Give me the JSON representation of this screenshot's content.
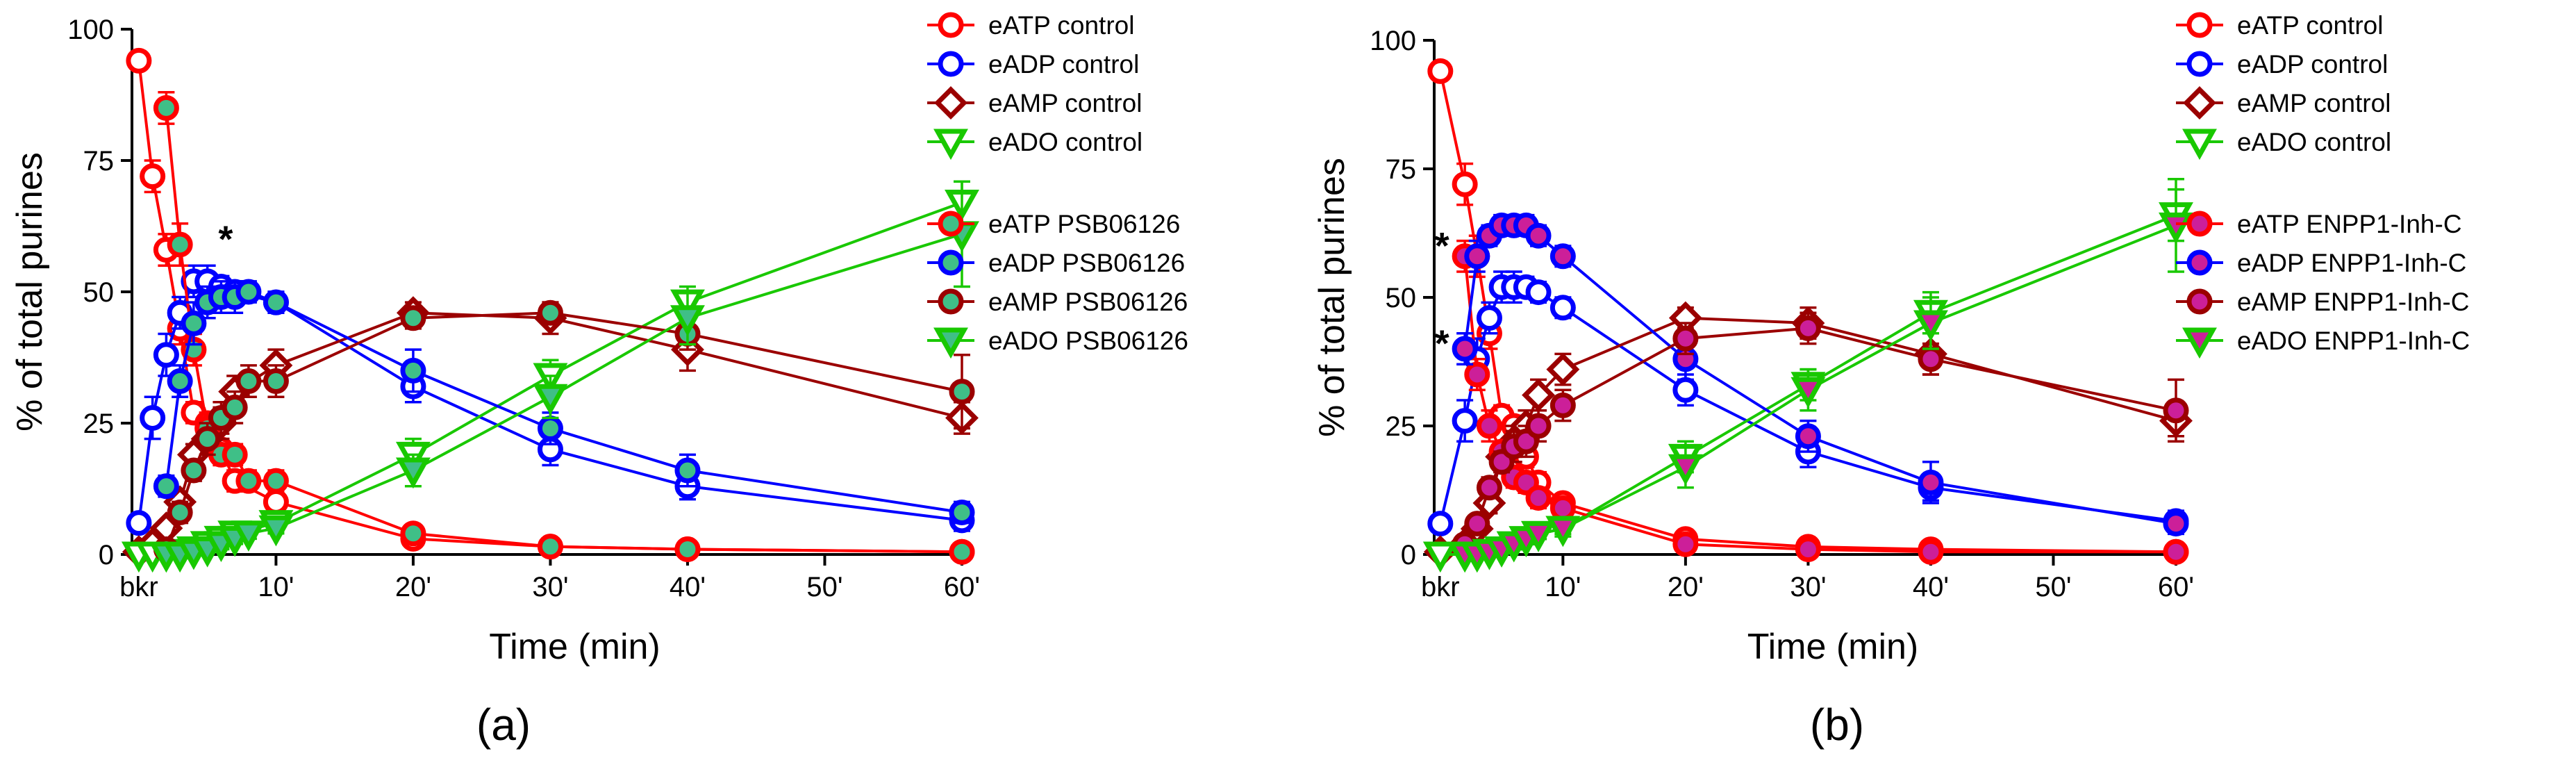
{
  "colors": {
    "atp": "#ff0000",
    "adp": "#0000ff",
    "amp": "#9b0000",
    "ado": "#19c800",
    "fill_psb": "#3fbf87",
    "fill_inh": "#cc1f99"
  },
  "chart_data": [
    {
      "type": "line",
      "panel_label": "(a)",
      "title": "",
      "xlabel": "Time (min)",
      "ylabel": "% of total purines",
      "xlim": [
        -0.5,
        60
      ],
      "ylim": [
        0,
        100
      ],
      "x_ticks": [
        {
          "x": 0,
          "label": "bkr"
        },
        {
          "x": 10,
          "label": "10'"
        },
        {
          "x": 20,
          "label": "20'"
        },
        {
          "x": 30,
          "label": "30'"
        },
        {
          "x": 40,
          "label": "40'"
        },
        {
          "x": 50,
          "label": "50'"
        },
        {
          "x": 60,
          "label": "60'"
        }
      ],
      "y_ticks": [
        0,
        25,
        50,
        75,
        100
      ],
      "legend_position": "right",
      "annotations": [
        {
          "text": "*",
          "x": 6.3,
          "y": 60
        }
      ],
      "series": [
        {
          "name": "eATP control",
          "marker": "circle",
          "color": "atp",
          "fill": "",
          "x": [
            0,
            1,
            2,
            3,
            4,
            5,
            6,
            7,
            10,
            20,
            30,
            40,
            60
          ],
          "y": [
            94,
            72,
            58,
            43,
            27,
            25,
            20,
            14,
            10,
            3,
            1.5,
            1,
            0.5
          ],
          "err": [
            1.5,
            3,
            3,
            3,
            2,
            2,
            2,
            2,
            1.5,
            1,
            0.5,
            0.5,
            0.3
          ]
        },
        {
          "name": "eADP control",
          "marker": "circle",
          "color": "adp",
          "fill": "",
          "x": [
            0,
            1,
            2,
            3,
            4,
            5,
            6,
            7,
            10,
            20,
            30,
            40,
            60
          ],
          "y": [
            6,
            26,
            38,
            46,
            52,
            52,
            51,
            50,
            48,
            32,
            20,
            13,
            6.5
          ],
          "err": [
            1,
            4,
            4,
            3,
            3,
            3,
            2,
            2,
            2,
            3,
            3,
            2.5,
            2
          ]
        },
        {
          "name": "eAMP control",
          "marker": "diamond",
          "color": "amp",
          "fill": "",
          "x": [
            0,
            1,
            2,
            3,
            4,
            5,
            6,
            7,
            10,
            20,
            30,
            40,
            60
          ],
          "y": [
            0.5,
            2,
            5,
            10,
            19,
            22,
            25,
            31,
            36,
            46,
            45,
            39,
            26
          ],
          "err": [
            0.5,
            1,
            1,
            2,
            2,
            3,
            3,
            3,
            3,
            2,
            3,
            4,
            3
          ]
        },
        {
          "name": "eADO control",
          "marker": "triangle-down",
          "color": "ado",
          "fill": "",
          "x": [
            0,
            1,
            2,
            3,
            4,
            5,
            6,
            7,
            10,
            20,
            30,
            40,
            60
          ],
          "y": [
            0,
            0,
            0,
            0.5,
            1,
            2,
            3,
            4,
            6,
            19,
            34,
            48,
            67
          ],
          "err": [
            0.3,
            0.3,
            0.3,
            0.5,
            0.5,
            1,
            1,
            1,
            1.5,
            3,
            3,
            3,
            4
          ]
        },
        {
          "name": "eATP PSB06126",
          "marker": "circle",
          "color": "atp",
          "fill": "fill_psb",
          "x": [
            2,
            3,
            4,
            5,
            6,
            7,
            8,
            10,
            20,
            30,
            40,
            60
          ],
          "y": [
            85,
            59,
            39,
            24,
            19,
            19,
            14,
            14,
            4,
            1.5,
            1,
            0.5
          ],
          "err": [
            3,
            4,
            3,
            3,
            2,
            2,
            2,
            2,
            1,
            0.5,
            0.5,
            0.3
          ]
        },
        {
          "name": "eADP PSB06126",
          "marker": "circle",
          "color": "adp",
          "fill": "fill_psb",
          "x": [
            2,
            3,
            4,
            5,
            6,
            7,
            8,
            10,
            20,
            30,
            40,
            60
          ],
          "y": [
            13,
            33,
            44,
            48,
            49,
            49,
            50,
            48,
            35,
            24,
            16,
            8
          ],
          "err": [
            2,
            3,
            4,
            3,
            3,
            3,
            2,
            2,
            4,
            3,
            3,
            2
          ]
        },
        {
          "name": "eAMP PSB06126",
          "marker": "circle",
          "color": "amp",
          "fill": "fill_psb",
          "x": [
            2,
            3,
            4,
            5,
            6,
            7,
            8,
            10,
            20,
            30,
            40,
            60
          ],
          "y": [
            1,
            8,
            16,
            22,
            26,
            28,
            33,
            33,
            45,
            46,
            42,
            31
          ],
          "err": [
            0.5,
            2,
            2,
            3,
            3,
            3,
            3,
            3,
            2,
            2,
            3,
            7
          ]
        },
        {
          "name": "eADO PSB06126",
          "marker": "triangle-down",
          "color": "ado",
          "fill": "fill_psb",
          "x": [
            2,
            3,
            4,
            5,
            6,
            7,
            8,
            10,
            20,
            30,
            40,
            60
          ],
          "y": [
            0,
            0,
            0.5,
            1,
            2,
            3,
            4,
            5,
            16,
            30,
            45,
            61
          ],
          "err": [
            0.3,
            0.3,
            0.5,
            0.5,
            1,
            1,
            1,
            1,
            3,
            4,
            5,
            10
          ]
        }
      ]
    },
    {
      "type": "line",
      "panel_label": "(b)",
      "title": "",
      "xlabel": "Time (min)",
      "ylabel": "% of total purines",
      "xlim": [
        -0.5,
        60
      ],
      "ylim": [
        0,
        100
      ],
      "x_ticks": [
        {
          "x": 0,
          "label": "bkr"
        },
        {
          "x": 10,
          "label": "10'"
        },
        {
          "x": 20,
          "label": "20'"
        },
        {
          "x": 30,
          "label": "30'"
        },
        {
          "x": 40,
          "label": "40'"
        },
        {
          "x": 50,
          "label": "50'"
        },
        {
          "x": 60,
          "label": "60'"
        }
      ],
      "y_ticks": [
        0,
        25,
        50,
        75,
        100
      ],
      "legend_position": "right",
      "annotations": [
        {
          "text": "*",
          "x": 0.1,
          "y": 60
        },
        {
          "text": "*",
          "x": 0.1,
          "y": 41
        }
      ],
      "series": [
        {
          "name": "eATP control",
          "marker": "circle",
          "color": "atp",
          "fill": "",
          "x": [
            0,
            2,
            3,
            4,
            5,
            6,
            7,
            8,
            10,
            20,
            30,
            40,
            60
          ],
          "y": [
            94,
            72,
            58,
            43,
            27,
            25,
            19,
            14,
            10,
            3,
            1.5,
            1,
            0.5
          ],
          "err": [
            1.5,
            4,
            4,
            3,
            2,
            2,
            2,
            2,
            1.5,
            1,
            0.5,
            0.5,
            0.3
          ]
        },
        {
          "name": "eADP control",
          "marker": "circle",
          "color": "adp",
          "fill": "",
          "x": [
            0,
            2,
            3,
            4,
            5,
            6,
            7,
            8,
            10,
            20,
            30,
            40,
            60
          ],
          "y": [
            6,
            26,
            38,
            46,
            52,
            52,
            52,
            51,
            48,
            32,
            20,
            13,
            6.5
          ],
          "err": [
            1,
            4,
            4,
            3,
            3,
            3,
            2,
            2,
            2,
            3,
            3,
            2.5,
            2
          ]
        },
        {
          "name": "eAMP control",
          "marker": "diamond",
          "color": "amp",
          "fill": "",
          "x": [
            0,
            2,
            3,
            4,
            5,
            6,
            7,
            8,
            10,
            20,
            30,
            40,
            60
          ],
          "y": [
            0.5,
            2,
            5,
            10,
            19,
            22,
            25,
            31,
            36,
            46,
            45,
            39,
            26
          ],
          "err": [
            0.5,
            1,
            1,
            2,
            2,
            3,
            3,
            3,
            3,
            2,
            3,
            4,
            3
          ]
        },
        {
          "name": "eADO control",
          "marker": "triangle-down",
          "color": "ado",
          "fill": "",
          "x": [
            0,
            2,
            3,
            4,
            5,
            6,
            7,
            8,
            10,
            20,
            30,
            40,
            60
          ],
          "y": [
            0,
            0,
            0,
            0.5,
            1,
            2,
            3,
            4,
            5,
            19,
            33,
            47,
            66
          ],
          "err": [
            0.3,
            0.3,
            0.3,
            0.5,
            0.5,
            1,
            1,
            1,
            1.5,
            3,
            3,
            4,
            5
          ]
        },
        {
          "name": "eATP ENPP1-Inh-C",
          "marker": "circle",
          "color": "atp",
          "fill": "fill_inh",
          "x": [
            2,
            3,
            4,
            5,
            6,
            7,
            8,
            10,
            20,
            30,
            40,
            60
          ],
          "y": [
            58,
            35,
            25,
            20,
            15,
            14,
            11,
            9,
            2,
            1,
            0.5,
            0.5
          ],
          "err": [
            3,
            3,
            3,
            2,
            2,
            2,
            2,
            1.5,
            1,
            0.5,
            0.5,
            0.3
          ]
        },
        {
          "name": "eADP ENPP1-Inh-C",
          "marker": "circle",
          "color": "adp",
          "fill": "fill_inh",
          "x": [
            2,
            3,
            4,
            5,
            6,
            7,
            8,
            10,
            20,
            30,
            40,
            60
          ],
          "y": [
            40,
            58,
            62,
            64,
            64,
            64,
            62,
            58,
            38,
            23,
            14,
            6
          ],
          "err": [
            3,
            3,
            2,
            2,
            2,
            2,
            2,
            2,
            4,
            3,
            4,
            2
          ]
        },
        {
          "name": "eAMP ENPP1-Inh-C",
          "marker": "circle",
          "color": "amp",
          "fill": "fill_inh",
          "x": [
            2,
            3,
            4,
            5,
            6,
            7,
            8,
            10,
            20,
            30,
            40,
            60
          ],
          "y": [
            2,
            6,
            13,
            18,
            21,
            22,
            25,
            29,
            42,
            44,
            38,
            28
          ],
          "err": [
            0.5,
            1,
            2,
            2,
            3,
            3,
            3,
            3,
            3,
            3,
            3,
            6
          ]
        },
        {
          "name": "eADO ENPP1-Inh-C",
          "marker": "triangle-down",
          "color": "ado",
          "fill": "fill_inh",
          "x": [
            2,
            3,
            4,
            5,
            6,
            7,
            8,
            10,
            20,
            30,
            40,
            60
          ],
          "y": [
            0,
            0,
            0.5,
            1,
            2,
            3,
            4,
            5,
            17,
            32,
            45,
            64
          ],
          "err": [
            0.3,
            0.3,
            0.5,
            0.5,
            1,
            1,
            1,
            1,
            4,
            4,
            5,
            9
          ]
        }
      ]
    }
  ]
}
